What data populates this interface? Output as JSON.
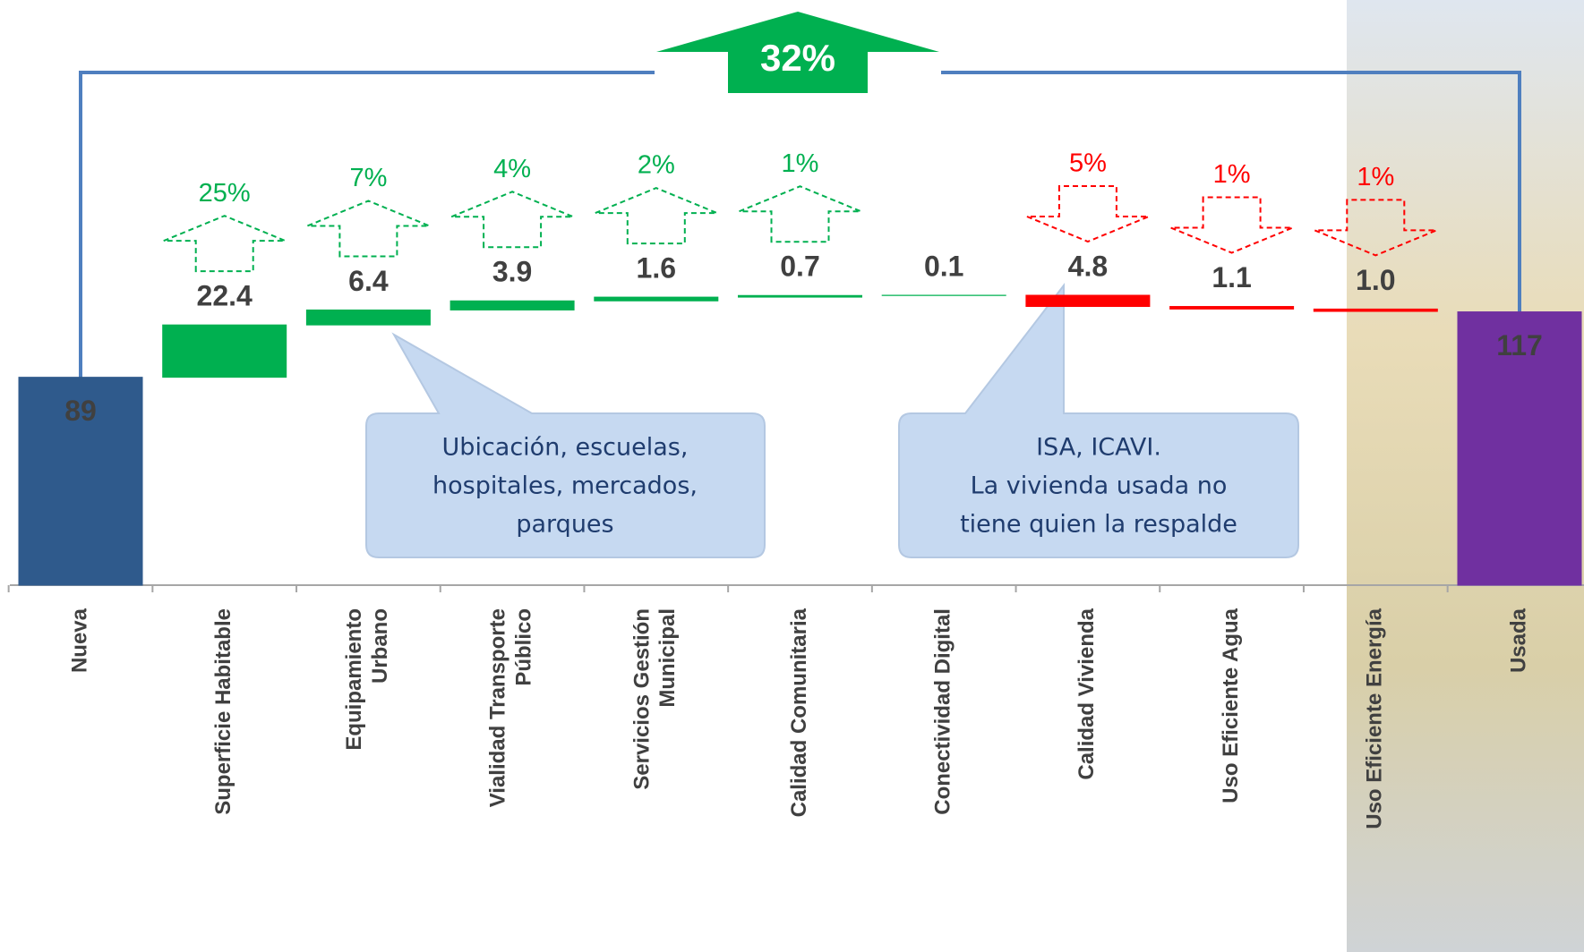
{
  "chart_data": {
    "type": "waterfall",
    "categories": [
      "Nueva",
      "Superficie Habitable",
      "Equipamiento\nUrbano",
      "Vialidad Transporte\nPúblico",
      "Servicios Gestión\nMunicipal",
      "Calidad Comunitaria",
      "Conectividad Digital",
      "Calidad Vivienda",
      "Uso Eficiente Agua",
      "Uso Eficiente Energía",
      "Usada"
    ],
    "values": [
      89,
      22.4,
      6.4,
      3.9,
      1.6,
      0.7,
      0.1,
      -4.8,
      -1.1,
      -1.0,
      117
    ],
    "value_labels": [
      "89",
      "22.4",
      "6.4",
      "3.9",
      "1.6",
      "0.7",
      "0.1",
      "4.8",
      "1.1",
      "1.0",
      "117"
    ],
    "colors": [
      "#2f5a8c",
      "#00b050",
      "#00b050",
      "#00b050",
      "#00b050",
      "#00b050",
      "#00b050",
      "#ff0000",
      "#ff0000",
      "#ff0000",
      "#7030a0"
    ],
    "pct_values": [
      null,
      25,
      7,
      4,
      2,
      1,
      null,
      -5,
      -1,
      -1,
      null
    ],
    "pct_labels": [
      null,
      "25%",
      "7%",
      "4%",
      "2%",
      "1%",
      null,
      "5%",
      "1%",
      "1%",
      null
    ],
    "total_change": {
      "value": 32,
      "label": "32%"
    },
    "annotations": [
      {
        "lines": [
          "Ubicación, escuelas,",
          "hospitales, mercados,",
          "parques"
        ]
      },
      {
        "lines": [
          "ISA, ICAVI.",
          "La vivienda usada no",
          "tiene quien la respalde"
        ]
      }
    ]
  }
}
